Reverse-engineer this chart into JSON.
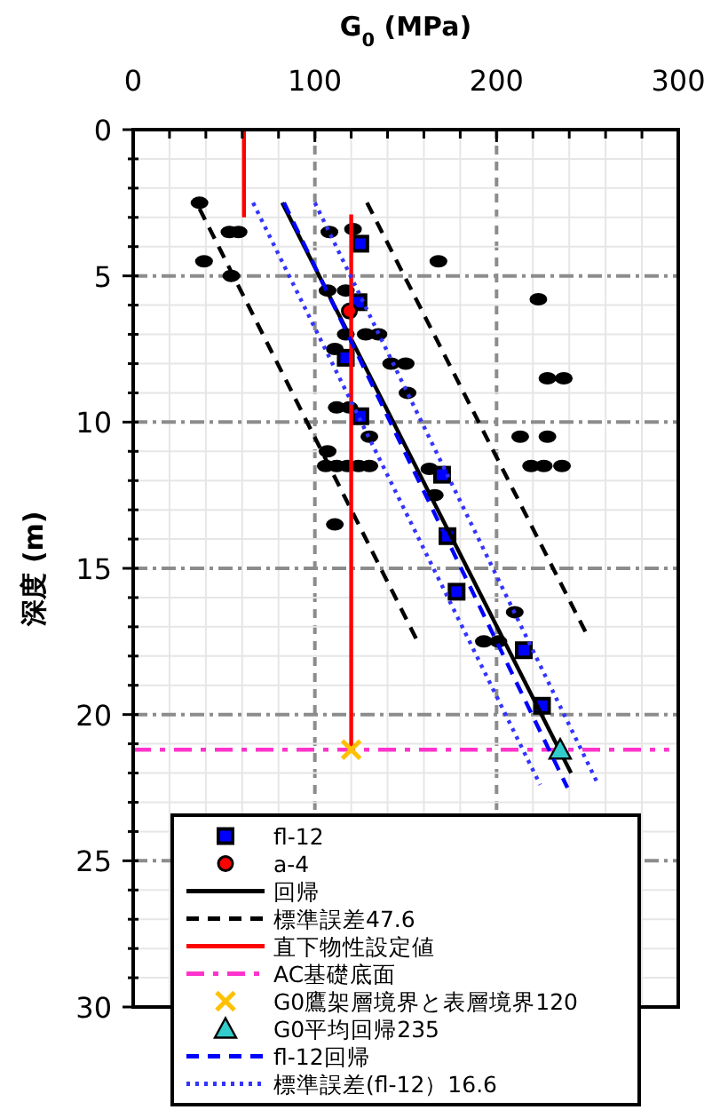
{
  "chart_data": {
    "type": "scatter",
    "xlabel": "G$_{0}$ (MPa)",
    "ylabel": "深度 (m)",
    "xlim": [
      0,
      300
    ],
    "ylim": [
      30,
      0
    ],
    "xticks": [
      0,
      {
        "value": 20,
        "label": null
      },
      {
        "value": 40,
        "label": null
      },
      {
        "value": 60,
        "label": null
      },
      {
        "value": 80,
        "label": null
      },
      100,
      {
        "value": 120,
        "label": null
      },
      {
        "value": 140,
        "label": null
      },
      {
        "value": 160,
        "label": null
      },
      {
        "value": 180,
        "label": null
      },
      200,
      {
        "value": 220,
        "label": null
      },
      {
        "value": 240,
        "label": null
      },
      {
        "value": 260,
        "label": null
      },
      {
        "value": 280,
        "label": null
      },
      300
    ],
    "yticks": [
      0,
      {
        "value": 1,
        "label": null
      },
      {
        "value": 2,
        "label": null
      },
      {
        "value": 3,
        "label": null
      },
      {
        "value": 4,
        "label": null
      },
      5,
      {
        "value": 6,
        "label": null
      },
      {
        "value": 7,
        "label": null
      },
      {
        "value": 8,
        "label": null
      },
      {
        "value": 9,
        "label": null
      },
      10,
      {
        "value": 11,
        "label": null
      },
      {
        "value": 12,
        "label": null
      },
      {
        "value": 13,
        "label": null
      },
      {
        "value": 14,
        "label": null
      },
      15,
      {
        "value": 16,
        "label": null
      },
      {
        "value": 17,
        "label": null
      },
      {
        "value": 18,
        "label": null
      },
      {
        "value": 19,
        "label": null
      },
      20,
      {
        "value": 21,
        "label": null
      },
      {
        "value": 22,
        "label": null
      },
      {
        "value": 23,
        "label": null
      },
      {
        "value": 24,
        "label": null
      },
      25,
      {
        "value": 26,
        "label": null
      },
      {
        "value": 27,
        "label": null
      },
      {
        "value": 28,
        "label": null
      },
      {
        "value": 29,
        "label": null
      },
      30
    ],
    "grid": true,
    "legend": "bottom",
    "series": [
      {
        "type": "scatter",
        "color": "#000000",
        "marker": "circle",
        "x": [
          36.5,
          53,
          58,
          39,
          54,
          108,
          121,
          168,
          107,
          117,
          223,
          117,
          128,
          135,
          111,
          142,
          150,
          228,
          237,
          151,
          112,
          119,
          130,
          213,
          228,
          107,
          106,
          112,
          118,
          124,
          130,
          219,
          226,
          236,
          163,
          166,
          111,
          210,
          193,
          201
        ],
        "values": [
          2.5,
          3.5,
          3.5,
          4.5,
          5,
          3.5,
          3.4,
          4.5,
          5.5,
          5.5,
          5.8,
          7,
          7,
          7,
          7.5,
          8,
          8,
          8.5,
          8.5,
          9,
          9.5,
          9.5,
          10.5,
          10.5,
          10.5,
          11,
          11.5,
          11.5,
          11.5,
          11.5,
          11.5,
          11.5,
          11.5,
          11.5,
          11.6,
          12.5,
          13.5,
          16.5,
          17.5,
          17.5
        ]
      },
      {
        "type": "scatter",
        "name": "fl-12",
        "color": "#0000ff",
        "marker": "square",
        "x": [
          125,
          124,
          117,
          125,
          170,
          173,
          178,
          215,
          225
        ],
        "values": [
          3.9,
          5.9,
          7.8,
          9.8,
          11.8,
          13.9,
          15.8,
          17.8,
          19.7
        ]
      },
      {
        "type": "scatter",
        "name": "a-4",
        "color": "#ff0000",
        "marker": "circle",
        "x": [
          119
        ],
        "values": [
          6.2
        ]
      },
      {
        "type": "line",
        "name": "回帰",
        "color": "#000000",
        "line_style": "solid",
        "x": [
          82,
          241
        ],
        "values": [
          2.5,
          22
        ]
      },
      {
        "type": "line",
        "name": "標準誤差47.6",
        "color": "#000000",
        "line_style": "dashed",
        "x": [
          36.5,
          155.7,
          null,
          128.7,
          250.8
        ],
        "values": [
          2.7,
          17.4,
          null,
          2.5,
          17.4
        ]
      },
      {
        "type": "line",
        "name": "直下物性設定値",
        "color": "#ff0000",
        "line_style": "solid",
        "x": [
          61,
          61,
          null,
          120,
          120
        ],
        "values": [
          0,
          3,
          null,
          2.9,
          21.2
        ]
      },
      {
        "type": "line",
        "name": "AC基礎底面",
        "color": "#ff33cc",
        "line_style": "dashdot",
        "x": [
          0,
          295
        ],
        "values": [
          21.2,
          21.2
        ]
      },
      {
        "type": "scatter",
        "name": "G0鷹架層境界と表層境界120",
        "color": "#ffc000",
        "marker": "cross",
        "x": [
          120
        ],
        "values": [
          21.2
        ]
      },
      {
        "type": "scatter",
        "name": "G0平均回帰235",
        "color": "#33cccc",
        "marker": "triangle",
        "x": [
          235
        ],
        "values": [
          21.2
        ]
      },
      {
        "type": "line",
        "name": "fl-12回帰",
        "color": "#0000ff",
        "line_style": "dashed",
        "x": [
          83,
          239
        ],
        "values": [
          2.5,
          22.5
        ]
      },
      {
        "type": "line",
        "name": "標準誤差(fl-12）16.6",
        "color": "#3333ff",
        "line_style": "dotted",
        "x": [
          66,
          224,
          null,
          100,
          256
        ],
        "values": [
          2.5,
          22.4,
          null,
          2.5,
          22.4
        ]
      }
    ]
  }
}
